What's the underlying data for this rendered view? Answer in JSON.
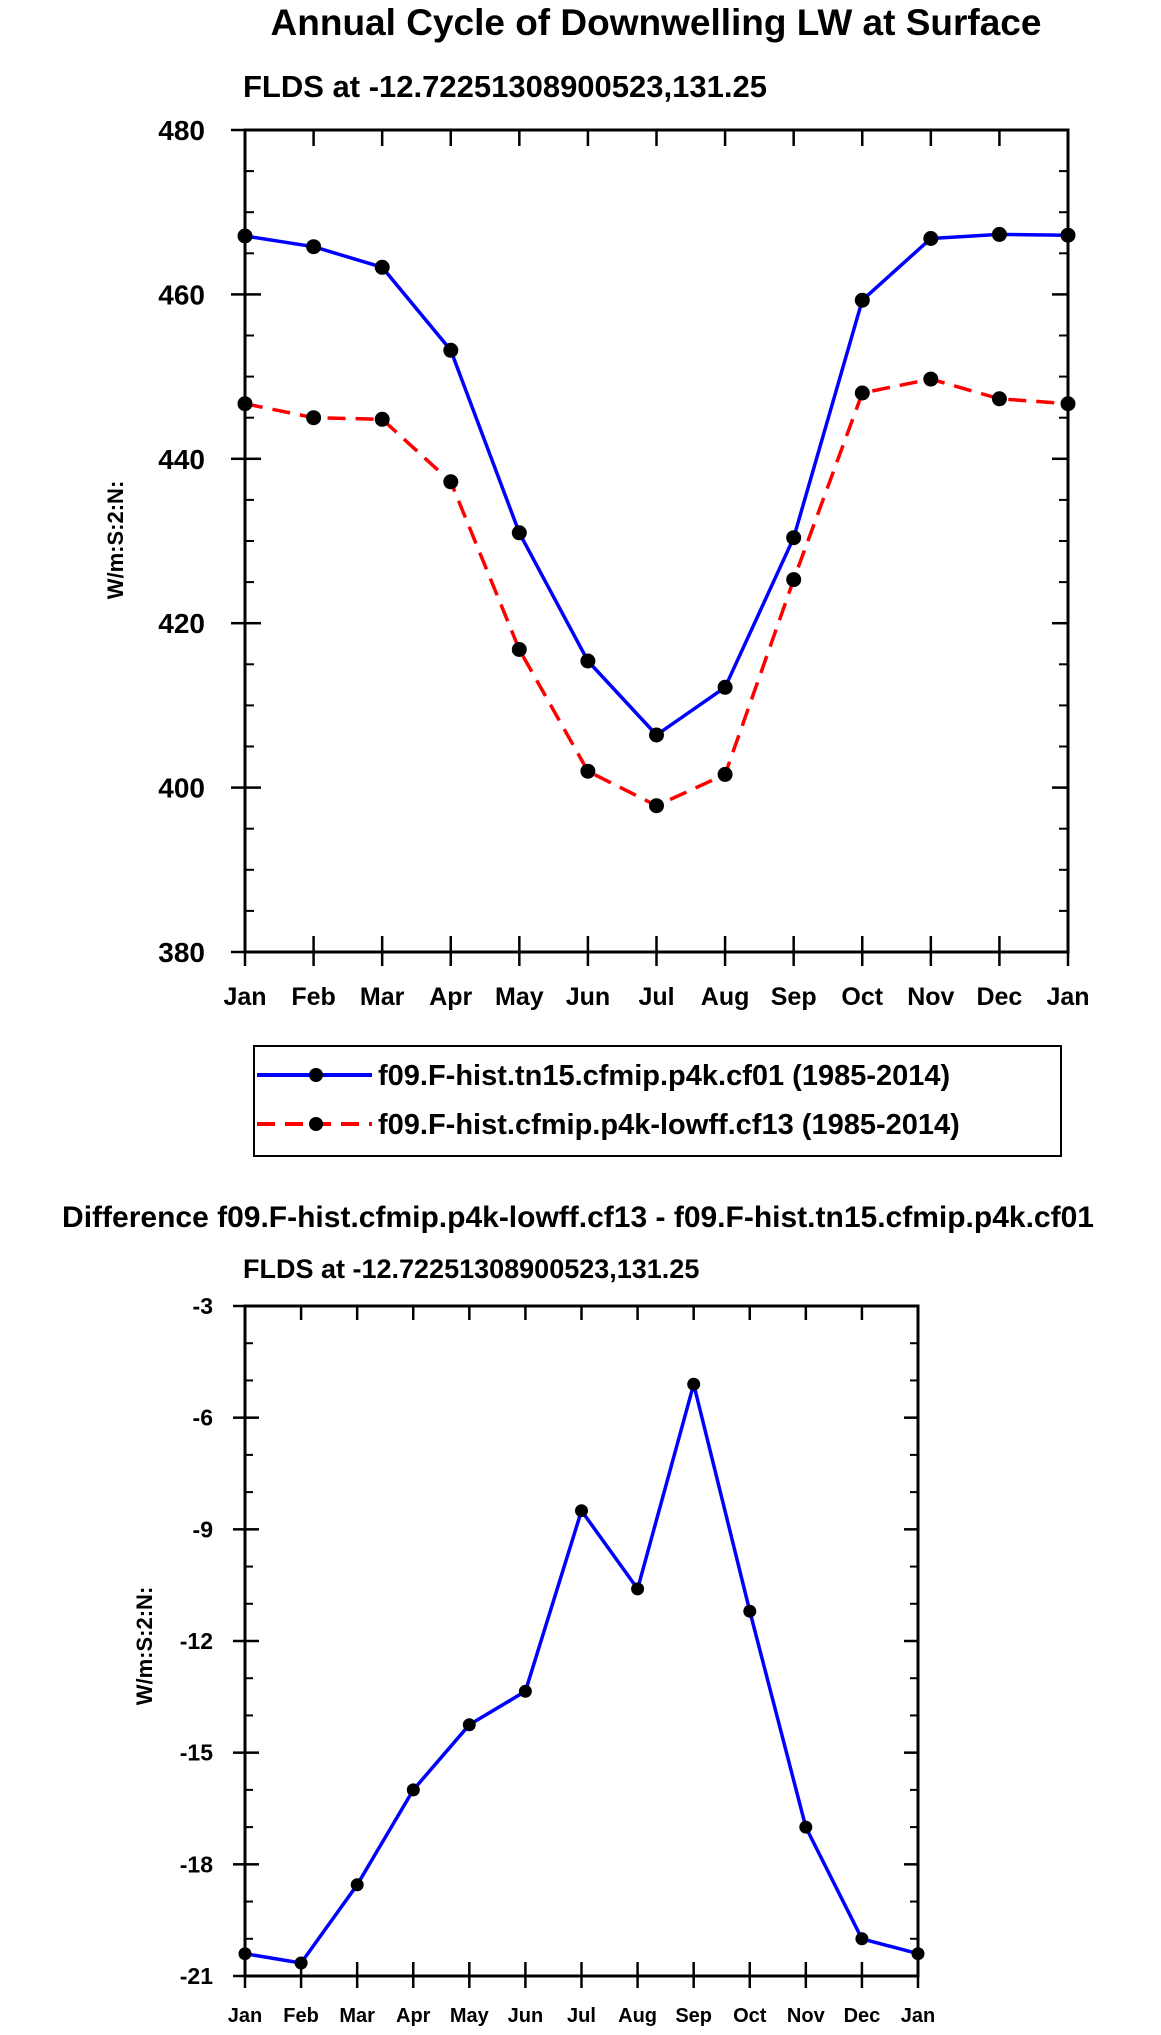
{
  "chart_data": [
    {
      "type": "line",
      "title": "Annual Cycle of Downwelling LW at Surface",
      "subtitle": "FLDS at -12.72251308900523,131.25",
      "xlabel": "",
      "ylabel": "W/m:S:2:N:",
      "categories": [
        "Jan",
        "Feb",
        "Mar",
        "Apr",
        "May",
        "Jun",
        "Jul",
        "Aug",
        "Sep",
        "Oct",
        "Nov",
        "Dec",
        "Jan"
      ],
      "ylim": [
        380,
        480
      ],
      "yticks": [
        "380",
        "400",
        "420",
        "440",
        "460",
        "480"
      ],
      "legend_position": "below",
      "series": [
        {
          "name": "f09.F-hist.tn15.cfmip.p4k.cf01 (1985-2014)",
          "color": "#0000ff",
          "dash": "solid",
          "values": [
            467.1,
            465.8,
            463.3,
            453.2,
            431.0,
            415.4,
            406.4,
            412.2,
            430.4,
            459.3,
            466.8,
            467.3,
            467.2
          ]
        },
        {
          "name": "f09.F-hist.cfmip.p4k-lowff.cf13 (1985-2014)",
          "color": "#ff0000",
          "dash": "dashed",
          "values": [
            446.7,
            445.0,
            444.8,
            437.2,
            416.8,
            402.0,
            397.8,
            401.6,
            425.3,
            448.0,
            449.7,
            447.3,
            446.7
          ]
        }
      ]
    },
    {
      "type": "line",
      "title": "Difference f09.F-hist.cfmip.p4k-lowff.cf13 - f09.F-hist.tn15.cfmip.p4k.cf01",
      "subtitle": "FLDS at -12.72251308900523,131.25",
      "xlabel": "",
      "ylabel": "W/m:S:2:N:",
      "categories": [
        "Jan",
        "Feb",
        "Mar",
        "Apr",
        "May",
        "Jun",
        "Jul",
        "Aug",
        "Sep",
        "Oct",
        "Nov",
        "Dec",
        "Jan"
      ],
      "ylim": [
        -21,
        -3
      ],
      "yticks": [
        "-21",
        "-18",
        "-15",
        "-12",
        "-9",
        "-6",
        "-3"
      ],
      "series": [
        {
          "name": "Difference",
          "color": "#0000ff",
          "dash": "solid",
          "values": [
            -20.4,
            -20.65,
            -18.55,
            -16.0,
            -14.25,
            -13.35,
            -8.5,
            -10.6,
            -5.1,
            -11.2,
            -17.0,
            -20.0,
            -20.4
          ]
        }
      ]
    }
  ]
}
